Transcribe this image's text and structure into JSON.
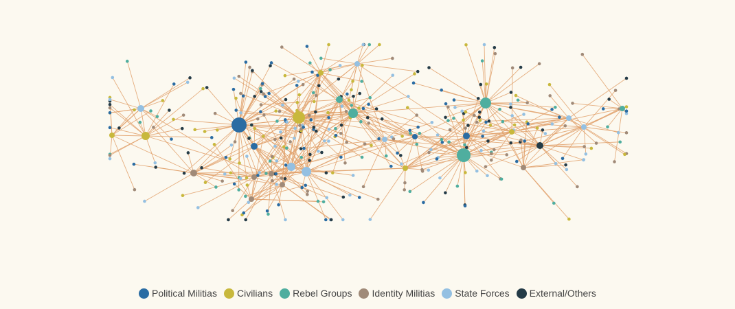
{
  "legend": {
    "items": [
      {
        "label": "Political Militias",
        "color": "#2a6ca3"
      },
      {
        "label": "Civilians",
        "color": "#c8b83c"
      },
      {
        "label": "Rebel Groups",
        "color": "#4fae9f"
      },
      {
        "label": "Identity Militias",
        "color": "#a08a78"
      },
      {
        "label": "State Forces",
        "color": "#94c0e2"
      },
      {
        "label": "External/Others",
        "color": "#243b47"
      }
    ]
  }
}
